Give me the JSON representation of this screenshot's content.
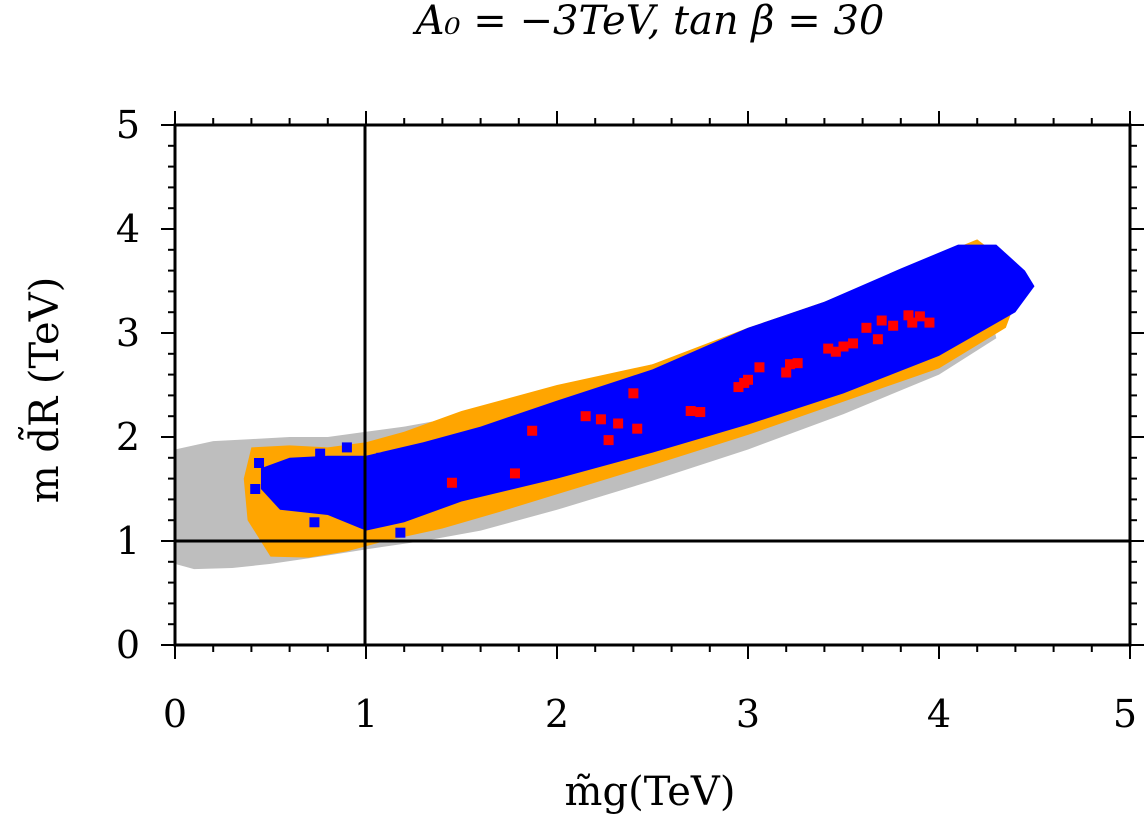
{
  "chart_data": {
    "type": "scatter",
    "title": "A₀ = −3TeV, tan β = 30",
    "xlabel": "m̃g(TeV)",
    "ylabel": "m d̃R (TeV)",
    "xlim": [
      0,
      5
    ],
    "ylim": [
      0,
      5
    ],
    "x_ticks": [
      "0",
      "1",
      "2",
      "3",
      "4",
      "5"
    ],
    "y_ticks": [
      "0",
      "1",
      "2",
      "3",
      "4",
      "5"
    ],
    "reference_lines": {
      "vertical_x": 1,
      "horizontal_y": 1
    },
    "regions": [
      {
        "color": "#bebebe",
        "polygon": [
          [
            0,
            0.78
          ],
          [
            0.1,
            0.73
          ],
          [
            0.3,
            0.74
          ],
          [
            0.5,
            0.78
          ],
          [
            0.8,
            0.86
          ],
          [
            1.0,
            0.92
          ],
          [
            1.3,
            1.0
          ],
          [
            1.6,
            1.1
          ],
          [
            2.0,
            1.3
          ],
          [
            2.5,
            1.58
          ],
          [
            3.0,
            1.88
          ],
          [
            3.5,
            2.22
          ],
          [
            4.0,
            2.6
          ],
          [
            4.3,
            2.95
          ],
          [
            4.2,
            3.8
          ],
          [
            3.9,
            3.6
          ],
          [
            3.5,
            3.28
          ],
          [
            3.0,
            3.0
          ],
          [
            2.5,
            2.7
          ],
          [
            2.0,
            2.45
          ],
          [
            1.5,
            2.2
          ],
          [
            1.2,
            2.1
          ],
          [
            1.0,
            2.05
          ],
          [
            0.8,
            2.0
          ],
          [
            0.6,
            2.0
          ],
          [
            0.4,
            1.98
          ],
          [
            0.2,
            1.96
          ],
          [
            0,
            1.88
          ]
        ]
      },
      {
        "color": "#ffa500",
        "polygon": [
          [
            0.38,
            1.2
          ],
          [
            0.5,
            0.85
          ],
          [
            0.7,
            0.84
          ],
          [
            0.9,
            0.9
          ],
          [
            1.1,
            1.0
          ],
          [
            1.4,
            1.12
          ],
          [
            1.7,
            1.28
          ],
          [
            2.0,
            1.45
          ],
          [
            2.5,
            1.73
          ],
          [
            3.0,
            2.02
          ],
          [
            3.5,
            2.34
          ],
          [
            4.0,
            2.66
          ],
          [
            4.35,
            3.05
          ],
          [
            4.45,
            3.55
          ],
          [
            4.2,
            3.9
          ],
          [
            3.8,
            3.6
          ],
          [
            3.4,
            3.3
          ],
          [
            3.0,
            3.05
          ],
          [
            2.5,
            2.7
          ],
          [
            2.0,
            2.5
          ],
          [
            1.5,
            2.25
          ],
          [
            1.2,
            2.05
          ],
          [
            1.0,
            1.95
          ],
          [
            0.8,
            1.9
          ],
          [
            0.6,
            1.92
          ],
          [
            0.4,
            1.9
          ],
          [
            0.36,
            1.6
          ]
        ]
      },
      {
        "color": "#0000ff",
        "polygon": [
          [
            0.45,
            1.5
          ],
          [
            0.55,
            1.3
          ],
          [
            0.8,
            1.25
          ],
          [
            1.0,
            1.1
          ],
          [
            1.2,
            1.18
          ],
          [
            1.5,
            1.38
          ],
          [
            2.0,
            1.6
          ],
          [
            2.5,
            1.85
          ],
          [
            3.0,
            2.12
          ],
          [
            3.5,
            2.42
          ],
          [
            4.0,
            2.78
          ],
          [
            4.4,
            3.2
          ],
          [
            4.5,
            3.45
          ],
          [
            4.45,
            3.6
          ],
          [
            4.3,
            3.85
          ],
          [
            4.1,
            3.85
          ],
          [
            3.8,
            3.62
          ],
          [
            3.4,
            3.3
          ],
          [
            3.0,
            3.05
          ],
          [
            2.5,
            2.65
          ],
          [
            2.0,
            2.35
          ],
          [
            1.6,
            2.1
          ],
          [
            1.3,
            1.95
          ],
          [
            1.0,
            1.82
          ],
          [
            0.8,
            1.82
          ],
          [
            0.6,
            1.8
          ],
          [
            0.45,
            1.7
          ]
        ]
      }
    ],
    "series": [
      {
        "color": "#0000ff",
        "x": [
          0.44,
          0.42,
          0.5,
          0.55,
          0.6,
          0.65,
          0.7,
          0.73,
          0.76,
          0.8,
          0.85,
          0.88,
          0.9,
          0.93,
          0.96,
          0.98,
          1.02,
          1.05,
          1.08,
          1.1,
          1.15,
          1.2,
          1.25,
          0.72,
          0.84,
          0.62,
          0.96,
          1.0,
          1.18,
          1.3
        ],
        "y": [
          1.75,
          1.5,
          1.55,
          1.65,
          1.45,
          1.7,
          1.52,
          1.18,
          1.84,
          1.62,
          1.48,
          1.75,
          1.9,
          1.57,
          1.68,
          1.42,
          1.72,
          1.6,
          1.8,
          1.35,
          1.64,
          1.52,
          1.74,
          1.34,
          1.7,
          1.58,
          1.28,
          1.5,
          1.08,
          1.62
        ]
      },
      {
        "color": "#ff0000",
        "x": [
          1.45,
          1.78,
          1.87,
          2.15,
          2.23,
          2.27,
          2.32,
          2.4,
          2.42,
          2.7,
          2.75,
          2.95,
          2.98,
          3.0,
          3.06,
          3.2,
          3.22,
          3.26,
          3.42,
          3.46,
          3.5,
          3.55,
          3.62,
          3.68,
          3.7,
          3.76,
          3.84,
          3.86,
          3.9,
          3.95
        ],
        "y": [
          1.56,
          1.65,
          2.06,
          2.2,
          2.17,
          1.97,
          2.13,
          2.42,
          2.08,
          2.25,
          2.24,
          2.48,
          2.52,
          2.55,
          2.67,
          2.62,
          2.7,
          2.71,
          2.85,
          2.82,
          2.87,
          2.9,
          3.05,
          2.94,
          3.12,
          3.07,
          3.17,
          3.1,
          3.16,
          3.1
        ]
      }
    ],
    "grid": false,
    "legend": "none"
  }
}
